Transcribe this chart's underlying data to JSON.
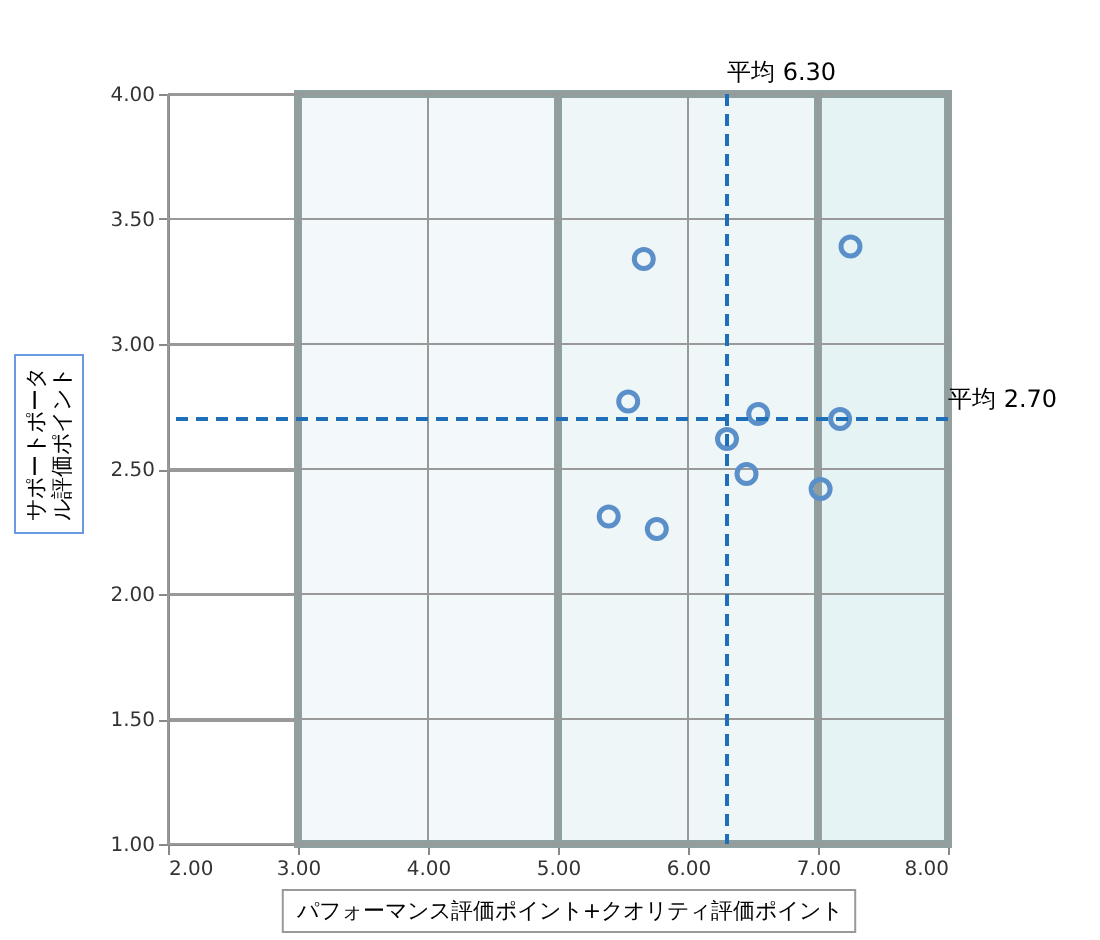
{
  "chart_data": {
    "type": "scatter",
    "xlabel": "パフォーマンス評価ポイント+クオリティ評価ポイント",
    "ylabel": "サポートポータル評価ポイント",
    "x": [
      5.66,
      7.25,
      5.54,
      6.54,
      7.17,
      6.3,
      6.45,
      7.02,
      5.39,
      5.76
    ],
    "series": [
      {
        "color": "#5b8fc9",
        "values": [
          3.34,
          3.39,
          2.77,
          2.72,
          2.7,
          2.62,
          2.48,
          2.42,
          2.31,
          2.26
        ]
      }
    ],
    "marker": "circle",
    "grid": true,
    "xlim": [
      2,
      8
    ],
    "xticks": [
      {
        "value": 2,
        "label": "2.00"
      },
      {
        "value": 3,
        "label": "3.00"
      },
      {
        "value": 4,
        "label": "4.00"
      },
      {
        "value": 5,
        "label": "5.00"
      },
      {
        "value": 6,
        "label": "6.00"
      },
      {
        "value": 7,
        "label": "7.00"
      },
      {
        "value": 8,
        "label": "8.00"
      }
    ],
    "ylim": [
      1,
      4
    ],
    "yticks": [
      {
        "value": 1,
        "label": "1.00"
      },
      {
        "value": 1.5,
        "label": "1.50"
      },
      {
        "value": 2,
        "label": "2.00"
      },
      {
        "value": 2.5,
        "label": "2.50"
      },
      {
        "value": 3,
        "label": "3.00"
      },
      {
        "value": 3.5,
        "label": "3.50"
      },
      {
        "value": 4,
        "label": "4.00"
      }
    ],
    "bands": [
      {
        "axis": "x",
        "from": 3,
        "to": 5,
        "color": "#f3f9fa"
      },
      {
        "axis": "x",
        "from": 5,
        "to": 7,
        "color": "#eef6f7"
      },
      {
        "axis": "x",
        "from": 7,
        "to": 8,
        "color": "#e6f3f5"
      }
    ],
    "ref_lines": [
      {
        "axis": "x",
        "value": 6.3,
        "label": "平均 6.30",
        "color": "#1f6fb8",
        "line_style": "dashed"
      },
      {
        "axis": "y",
        "value": 2.7,
        "label": "平均 2.70",
        "color": "#1f6fb8",
        "line_style": "dashed"
      }
    ]
  }
}
